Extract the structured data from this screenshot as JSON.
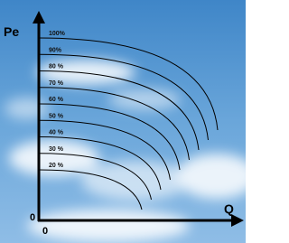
{
  "axes": {
    "y_label": "Pe",
    "x_label": "Q",
    "y_origin": "0",
    "x_origin": "0"
  },
  "curves": [
    {
      "label": "100%"
    },
    {
      "label": "90%"
    },
    {
      "label": "80 %"
    },
    {
      "label": "70 %"
    },
    {
      "label": "60 %"
    },
    {
      "label": "50 %"
    },
    {
      "label": "40 %"
    },
    {
      "label": "30 %"
    },
    {
      "label": "20 %"
    }
  ]
}
